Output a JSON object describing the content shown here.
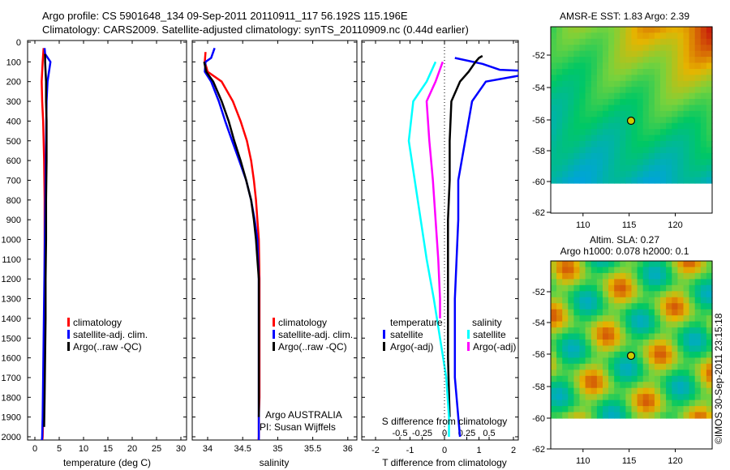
{
  "header": {
    "line1": "Argo profile: CS 5901648_134 09-Sep-2011 20110911_117 56.192S 115.196E",
    "line2": "Climatology: CARS2009. Satellite-adjusted climatology: synTS_20110909.nc (0.44d earlier)"
  },
  "colors": {
    "climatology": "#ff0000",
    "satellite": "#0000ff",
    "argo": "#000000",
    "sat_s": "#00ffff",
    "argo_s": "#ff00ff"
  },
  "depth_ticks": [
    "0",
    "100",
    "200",
    "300",
    "400",
    "500",
    "600",
    "700",
    "800",
    "900",
    "1000",
    "1100",
    "1200",
    "1300",
    "1400",
    "1500",
    "1600",
    "1700",
    "1800",
    "1900",
    "2000"
  ],
  "panels": {
    "temperature": {
      "xlabel": "temperature (deg C)",
      "xticks": [
        "0",
        "5",
        "10",
        "15",
        "20",
        "25",
        "30"
      ],
      "legend": [
        "climatology",
        "satellite-adj. clim.",
        "Argo(..raw -QC)"
      ]
    },
    "salinity": {
      "xlabel": "salinity",
      "xticks": [
        "34",
        "34.5",
        "35",
        "35.5",
        "36"
      ],
      "legend": [
        "climatology",
        "satellite-adj. clim.",
        "Argo(..raw -QC)"
      ],
      "note1": "Argo AUSTRALIA",
      "note2": "PI: Susan Wijffels"
    },
    "difference": {
      "xlabel_top": "S difference from climatology",
      "xlabel_bottom": "T difference from climatology",
      "xticks_t": [
        "-2",
        "-1",
        "0",
        "1",
        "2"
      ],
      "xticks_s": [
        "-0.5",
        "-0.25",
        "0",
        "0.25",
        "0.5"
      ],
      "legend_t_title": "temperature",
      "legend_s_title": "salinity",
      "legend_t": [
        "satellite",
        "Argo(-adj)"
      ],
      "legend_s": [
        "satellite",
        "Argo(-adj)"
      ]
    }
  },
  "maps": {
    "sst": {
      "title": "AMSR-E SST: 1.83 Argo: 2.39"
    },
    "sla": {
      "title1": "Altim. SLA: 0.27",
      "title2": "Argo h1000: 0.078 h2000: 0.1"
    },
    "yticks": [
      "-52",
      "-54",
      "-56",
      "-58",
      "-60",
      "-62"
    ],
    "xticks": [
      "110",
      "115",
      "120"
    ]
  },
  "credit": "©IMOS 30-Sep-2011 23:15:18",
  "chart_data": [
    {
      "type": "line",
      "title": "",
      "xlabel": "temperature (deg C)",
      "ylabel": "",
      "xlim": [
        -1,
        31
      ],
      "ylim": [
        2050,
        0
      ],
      "series": [
        {
          "name": "climatology",
          "x": [
            1.8,
            1.6,
            1.4,
            1.5,
            1.7,
            1.9,
            2.0,
            2.0,
            2.0,
            2.0,
            2.0,
            2.0,
            2.0,
            1.9,
            1.8,
            1.7,
            1.6,
            1.5,
            1.4,
            1.3,
            1.2
          ],
          "y": [
            30,
            100,
            200,
            300,
            400,
            600,
            800,
            1000,
            1200,
            1300,
            1400,
            1500,
            1600,
            1700,
            1800,
            1900,
            2000,
            2030,
            2040,
            2045,
            2050
          ]
        },
        {
          "name": "satellite-adj. clim.",
          "x": [
            2.0,
            2.1,
            3.2,
            2.6,
            2.4,
            2.3,
            2.2,
            2.1,
            2.0,
            1.9,
            1.8,
            1.7,
            1.6,
            1.5,
            1.4
          ],
          "y": [
            30,
            60,
            100,
            200,
            300,
            500,
            700,
            900,
            1100,
            1300,
            1500,
            1700,
            1900,
            2000,
            2030
          ]
        },
        {
          "name": "Argo(..raw -QC)",
          "x": [
            2.1,
            2.1,
            2.3,
            2.3,
            2.4,
            2.4,
            2.3,
            2.3,
            2.2,
            2.2,
            2.1,
            2.0,
            1.9
          ],
          "y": [
            60,
            100,
            200,
            300,
            400,
            600,
            800,
            1000,
            1200,
            1400,
            1600,
            1800,
            1950
          ]
        }
      ]
    },
    {
      "type": "line",
      "title": "",
      "xlabel": "salinity",
      "ylabel": "",
      "xlim": [
        33.85,
        36.05
      ],
      "ylim": [
        2050,
        0
      ],
      "series": [
        {
          "name": "climatology",
          "x": [
            33.97,
            33.96,
            34.0,
            34.2,
            34.36,
            34.47,
            34.56,
            34.62,
            34.66,
            34.69,
            34.71,
            34.73,
            34.74,
            34.74,
            34.74,
            34.74,
            34.73,
            34.73,
            34.72
          ],
          "y": [
            50,
            100,
            150,
            200,
            300,
            400,
            500,
            600,
            700,
            800,
            900,
            1000,
            1200,
            1400,
            1600,
            1800,
            1900,
            2000,
            2040
          ]
        },
        {
          "name": "satellite-adj. clim.",
          "x": [
            34.1,
            34.05,
            33.97,
            33.96,
            34.05,
            34.16,
            34.25,
            34.35,
            34.45,
            34.55,
            34.62,
            34.67,
            34.71,
            34.73,
            34.73,
            34.73,
            34.73
          ],
          "y": [
            30,
            80,
            100,
            150,
            200,
            300,
            400,
            500,
            600,
            700,
            800,
            900,
            1000,
            1200,
            1400,
            1800,
            2030
          ]
        },
        {
          "name": "Argo(..raw -QC)",
          "x": [
            33.95,
            33.98,
            34.08,
            34.2,
            34.3,
            34.38,
            34.47,
            34.55,
            34.62,
            34.66,
            34.69,
            34.71,
            34.73,
            34.73,
            34.73
          ],
          "y": [
            100,
            150,
            200,
            300,
            400,
            500,
            600,
            700,
            800,
            900,
            1000,
            1100,
            1200,
            1500,
            1900
          ]
        }
      ]
    },
    {
      "type": "line",
      "title": "",
      "xlabel": "T difference from climatology",
      "ylabel": "",
      "xlim": [
        -2.5,
        3.0
      ],
      "ylim": [
        2050,
        0
      ],
      "series": [
        {
          "name": "temperature satellite",
          "x": [
            0.3,
            1.1,
            1.6,
            2.8,
            1.2,
            0.8,
            0.6,
            0.4,
            0.4,
            0.35,
            0.3,
            0.3,
            0.3,
            0.35,
            0.4,
            0.45
          ],
          "y": [
            80,
            110,
            140,
            150,
            200,
            300,
            500,
            700,
            900,
            1100,
            1300,
            1500,
            1700,
            1800,
            1900,
            2000
          ]
        },
        {
          "name": "temperature Argo(-adj)",
          "x": [
            1.1,
            1.0,
            0.9,
            0.7,
            0.45,
            0.2,
            0.15,
            0.15,
            0.1,
            0.1,
            0.1,
            0.1,
            0.15
          ],
          "y": [
            70,
            80,
            100,
            150,
            200,
            300,
            500,
            700,
            900,
            1100,
            1300,
            1600,
            1900
          ]
        },
        {
          "name": "salinity satellite",
          "x": [
            -0.1,
            -0.2,
            -0.35,
            -0.4,
            -0.3,
            -0.2,
            -0.12,
            -0.05,
            0.02,
            0.05,
            0.05
          ],
          "y": [
            100,
            200,
            300,
            500,
            800,
            1100,
            1300,
            1500,
            1700,
            1900,
            2000
          ]
        },
        {
          "name": "salinity Argo(-adj)",
          "x": [
            -0.02,
            -0.1,
            -0.2,
            -0.17,
            -0.13,
            -0.1,
            -0.07,
            -0.05,
            -0.05
          ],
          "y": [
            100,
            200,
            300,
            500,
            700,
            900,
            1100,
            1300,
            1400
          ]
        }
      ]
    },
    {
      "type": "heatmap",
      "title": "AMSR-E SST: 1.83 Argo: 2.39",
      "xlim": [
        106.5,
        124
      ],
      "ylim": [
        -62,
        -50.5
      ],
      "argo_position": [
        115.2,
        -56.2
      ]
    },
    {
      "type": "heatmap",
      "title": "Altim. SLA: 0.27",
      "xlim": [
        106.5,
        124
      ],
      "ylim": [
        -62,
        -50.5
      ],
      "argo_position": [
        115.2,
        -56.2
      ]
    }
  ]
}
